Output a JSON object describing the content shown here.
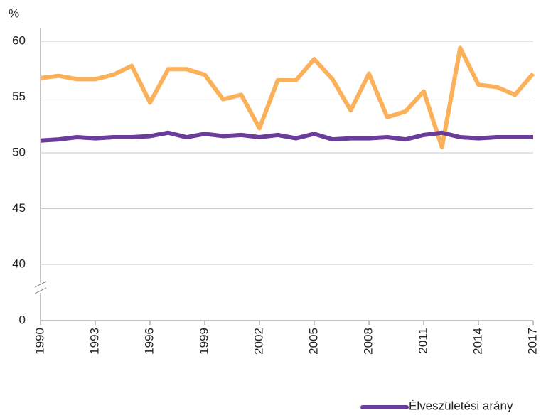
{
  "chart_data": {
    "type": "line",
    "y_label": "%",
    "x": [
      1990,
      1991,
      1992,
      1993,
      1994,
      1995,
      1996,
      1997,
      1998,
      1999,
      2000,
      2001,
      2002,
      2003,
      2004,
      2005,
      2006,
      2007,
      2008,
      2009,
      2010,
      2011,
      2012,
      2013,
      2014,
      2015,
      2016,
      2017
    ],
    "xlim": [
      1990,
      2017
    ],
    "xticks": [
      1990,
      1993,
      1996,
      1999,
      2002,
      2005,
      2008,
      2011,
      2014,
      2017
    ],
    "ylim": [
      0,
      60
    ],
    "axis_break": [
      0,
      40
    ],
    "yticks": [
      0,
      40,
      45,
      50,
      55,
      60
    ],
    "grid": true,
    "legend": "bottom-right",
    "series": [
      {
        "color": "#fbb05a",
        "values": [
          56.7,
          56.9,
          56.6,
          56.6,
          57.0,
          57.8,
          54.5,
          57.5,
          57.5,
          57.0,
          54.8,
          55.2,
          52.2,
          56.5,
          56.5,
          58.4,
          56.6,
          53.8,
          57.1,
          53.2,
          53.7,
          55.5,
          50.5,
          59.4,
          56.1,
          55.9,
          55.2,
          57.1
        ]
      },
      {
        "name": "Élveszületési arány",
        "color": "#6a3d9a",
        "values": [
          51.1,
          51.2,
          51.4,
          51.3,
          51.4,
          51.4,
          51.5,
          51.8,
          51.4,
          51.7,
          51.5,
          51.6,
          51.4,
          51.6,
          51.3,
          51.7,
          51.2,
          51.3,
          51.3,
          51.4,
          51.2,
          51.6,
          51.8,
          51.4,
          51.3,
          51.4,
          51.4,
          51.4
        ]
      }
    ]
  }
}
